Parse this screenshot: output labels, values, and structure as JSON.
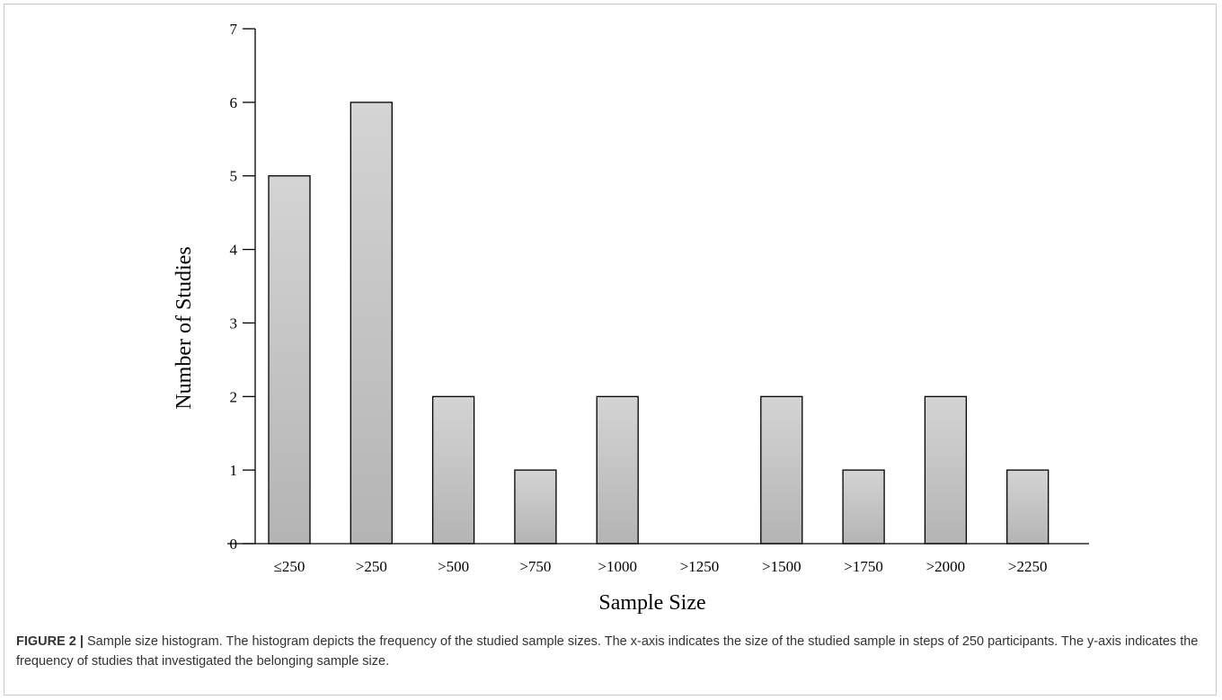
{
  "chart_data": {
    "type": "bar",
    "categories": [
      "≤250",
      ">250",
      ">500",
      ">750",
      ">1000",
      ">1250",
      ">1500",
      ">1750",
      ">2000",
      ">2250"
    ],
    "values": [
      5,
      6,
      2,
      1,
      2,
      0,
      2,
      1,
      2,
      1
    ],
    "xlabel": "Sample Size",
    "ylabel": "Number of Studies",
    "ylim": [
      0,
      7
    ],
    "yticks": [
      0,
      1,
      2,
      3,
      4,
      5,
      6,
      7
    ],
    "grid": false,
    "bar_fill_top": "#d4d4d4",
    "bar_fill_bottom": "#b4b4b4",
    "bar_stroke": "#000000"
  },
  "caption": {
    "label": "FIGURE 2",
    "separator": " | ",
    "text": "Sample size histogram. The histogram depicts the frequency of the studied sample sizes. The x-axis indicates the size of the studied sample in steps of 250 participants. The y-axis indicates the frequency of studies that investigated the belonging sample size."
  }
}
